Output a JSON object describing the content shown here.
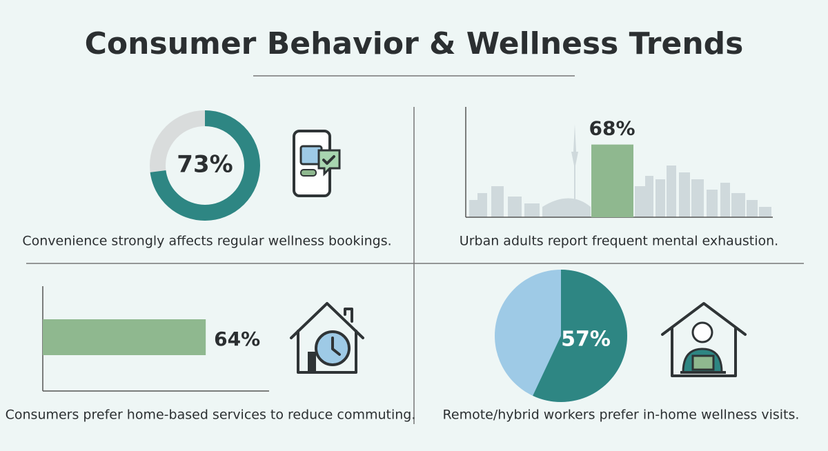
{
  "title": "Consumer Behavior & Wellness Trends",
  "chart_data": [
    {
      "type": "donut",
      "values": [
        73
      ],
      "value_labels": [
        "73%"
      ],
      "ylim": [
        0,
        100
      ],
      "color": "#2e8683",
      "track_color": "#d9dcdc",
      "caption": "Convenience strongly affects regular wellness bookings."
    },
    {
      "type": "bar",
      "values": [
        68
      ],
      "value_labels": [
        "68%"
      ],
      "ylim": [
        0,
        100
      ],
      "color": "#8fb88f",
      "caption": "Urban adults report frequent mental exhaustion."
    },
    {
      "type": "hbar",
      "values": [
        64
      ],
      "value_labels": [
        "64%"
      ],
      "xlim": [
        0,
        100
      ],
      "color": "#8fb88f",
      "caption": "Consumers prefer home-based services to reduce commuting."
    },
    {
      "type": "pie",
      "values": [
        57
      ],
      "value_labels": [
        "57%"
      ],
      "ylim": [
        0,
        100
      ],
      "color": "#2e8683",
      "rest_color": "#9ecae6",
      "caption": "Remote/hybrid workers prefer in-home wellness visits."
    }
  ]
}
